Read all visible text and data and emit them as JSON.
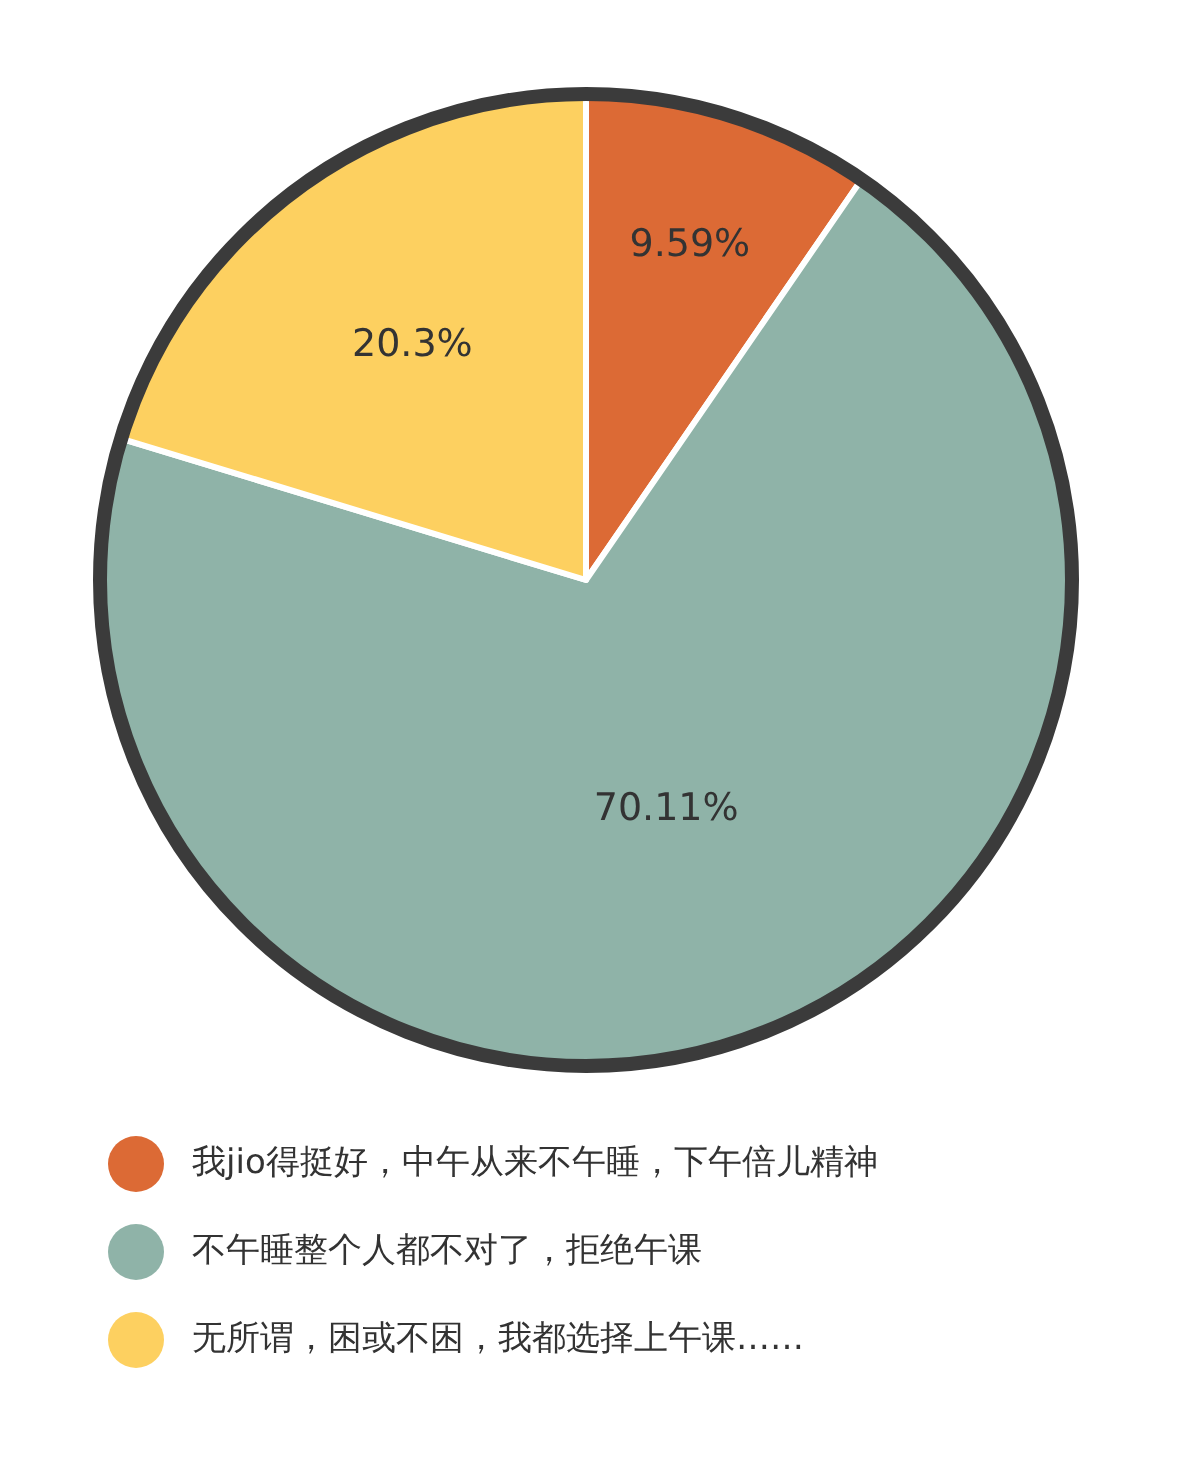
{
  "chart_data": {
    "type": "pie",
    "categories": [
      "我jio得挺好，中午从来不午睡，下午倍儿精神",
      "不午睡整个人都不对了，拒绝午课",
      "无所谓，困或不困，我都选择上午课……"
    ],
    "values": [
      9.59,
      70.11,
      20.3
    ],
    "colors": [
      "#dc6a35",
      "#8fb3a8",
      "#fdd060"
    ],
    "value_labels": [
      "9.59%",
      "70.11%",
      "20.3%"
    ],
    "legend": "bottom"
  }
}
